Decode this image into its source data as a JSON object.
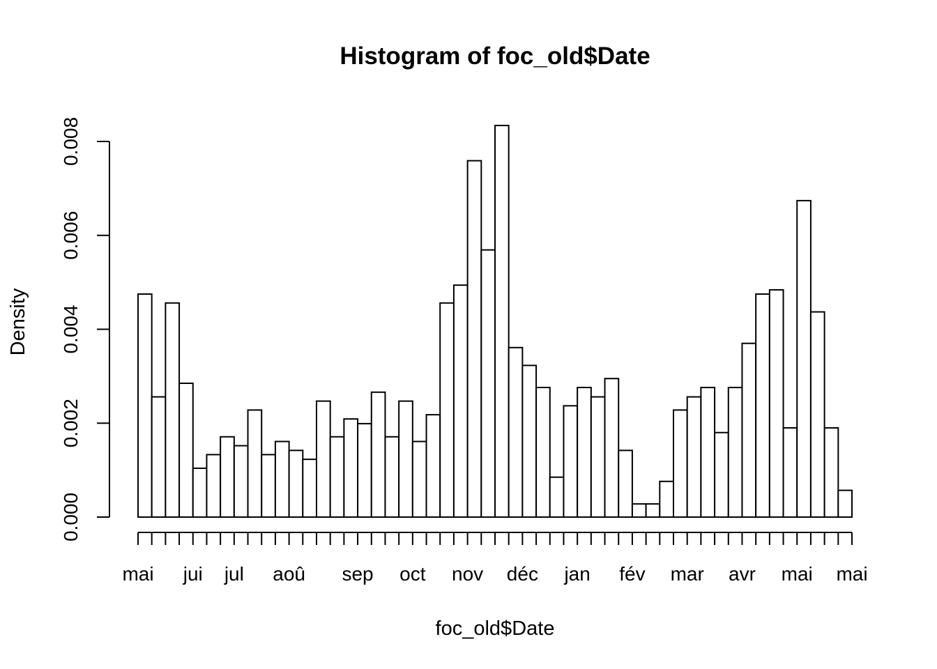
{
  "chart_data": {
    "type": "bar",
    "title": "Histogram of foc_old$Date",
    "xlabel": "foc_old$Date",
    "ylabel": "Density",
    "ylim": [
      0,
      0.0083
    ],
    "y_ticks": [
      "0.000",
      "0.002",
      "0.004",
      "0.006",
      "0.008"
    ],
    "y_tick_values": [
      0,
      0.002,
      0.004,
      0.006,
      0.008
    ],
    "x_month_labels": [
      {
        "label": "mai",
        "bin_edge": 0
      },
      {
        "label": "jui",
        "bin_edge": 4
      },
      {
        "label": "jul",
        "bin_edge": 7
      },
      {
        "label": "aoû",
        "bin_edge": 11
      },
      {
        "label": "sep",
        "bin_edge": 16
      },
      {
        "label": "oct",
        "bin_edge": 20
      },
      {
        "label": "nov",
        "bin_edge": 24
      },
      {
        "label": "déc",
        "bin_edge": 28
      },
      {
        "label": "jan",
        "bin_edge": 32
      },
      {
        "label": "fév",
        "bin_edge": 36
      },
      {
        "label": "mar",
        "bin_edge": 40
      },
      {
        "label": "avr",
        "bin_edge": 44
      },
      {
        "label": "mai",
        "bin_edge": 48
      },
      {
        "label": "mai",
        "bin_edge": 52
      }
    ],
    "values": [
      0.00475,
      0.00256,
      0.00456,
      0.00285,
      0.00104,
      0.00133,
      0.00171,
      0.00152,
      0.00228,
      0.00133,
      0.00161,
      0.00142,
      0.00123,
      0.00247,
      0.00171,
      0.00209,
      0.00199,
      0.00266,
      0.00171,
      0.00247,
      0.00161,
      0.00218,
      0.00456,
      0.00494,
      0.00759,
      0.00569,
      0.00834,
      0.00361,
      0.00323,
      0.00276,
      0.00085,
      0.00237,
      0.00276,
      0.00256,
      0.00295,
      0.00142,
      0.00028,
      0.00028,
      0.00076,
      0.00228,
      0.00256,
      0.00276,
      0.0018,
      0.00276,
      0.0037,
      0.00475,
      0.00484,
      0.0019,
      0.00674,
      0.00437,
      0.0019,
      0.00057
    ]
  }
}
